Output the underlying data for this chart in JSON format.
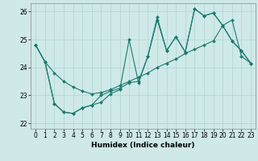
{
  "xlabel": "Humidex (Indice chaleur)",
  "xlim": [
    -0.5,
    23.5
  ],
  "ylim": [
    21.8,
    26.3
  ],
  "yticks": [
    22,
    23,
    24,
    25,
    26
  ],
  "xticks": [
    0,
    1,
    2,
    3,
    4,
    5,
    6,
    7,
    8,
    9,
    10,
    11,
    12,
    13,
    14,
    15,
    16,
    17,
    18,
    19,
    20,
    21,
    22,
    23
  ],
  "bg_color": "#cee9e8",
  "line_color": "#1a7a6e",
  "grid_color": "#b0d4d2",
  "s1": [
    24.8,
    24.2,
    23.8,
    23.5,
    23.3,
    23.15,
    23.05,
    23.1,
    23.2,
    23.35,
    23.5,
    23.65,
    23.8,
    24.0,
    24.15,
    24.3,
    24.5,
    24.65,
    24.8,
    24.95,
    25.5,
    25.7,
    24.4,
    24.15
  ],
  "s2": [
    24.8,
    24.2,
    22.7,
    22.4,
    22.35,
    22.55,
    22.65,
    22.75,
    23.05,
    23.2,
    25.0,
    23.45,
    24.4,
    25.8,
    24.6,
    25.1,
    24.55,
    26.1,
    25.85,
    25.95,
    25.5,
    24.95,
    24.6,
    24.15
  ],
  "s3": [
    24.8,
    24.2,
    22.7,
    22.4,
    22.35,
    22.55,
    22.65,
    23.0,
    23.15,
    23.25,
    23.45,
    23.5,
    24.4,
    25.7,
    24.6,
    25.1,
    24.55,
    26.1,
    25.85,
    25.95,
    25.5,
    24.95,
    24.6,
    24.15
  ]
}
